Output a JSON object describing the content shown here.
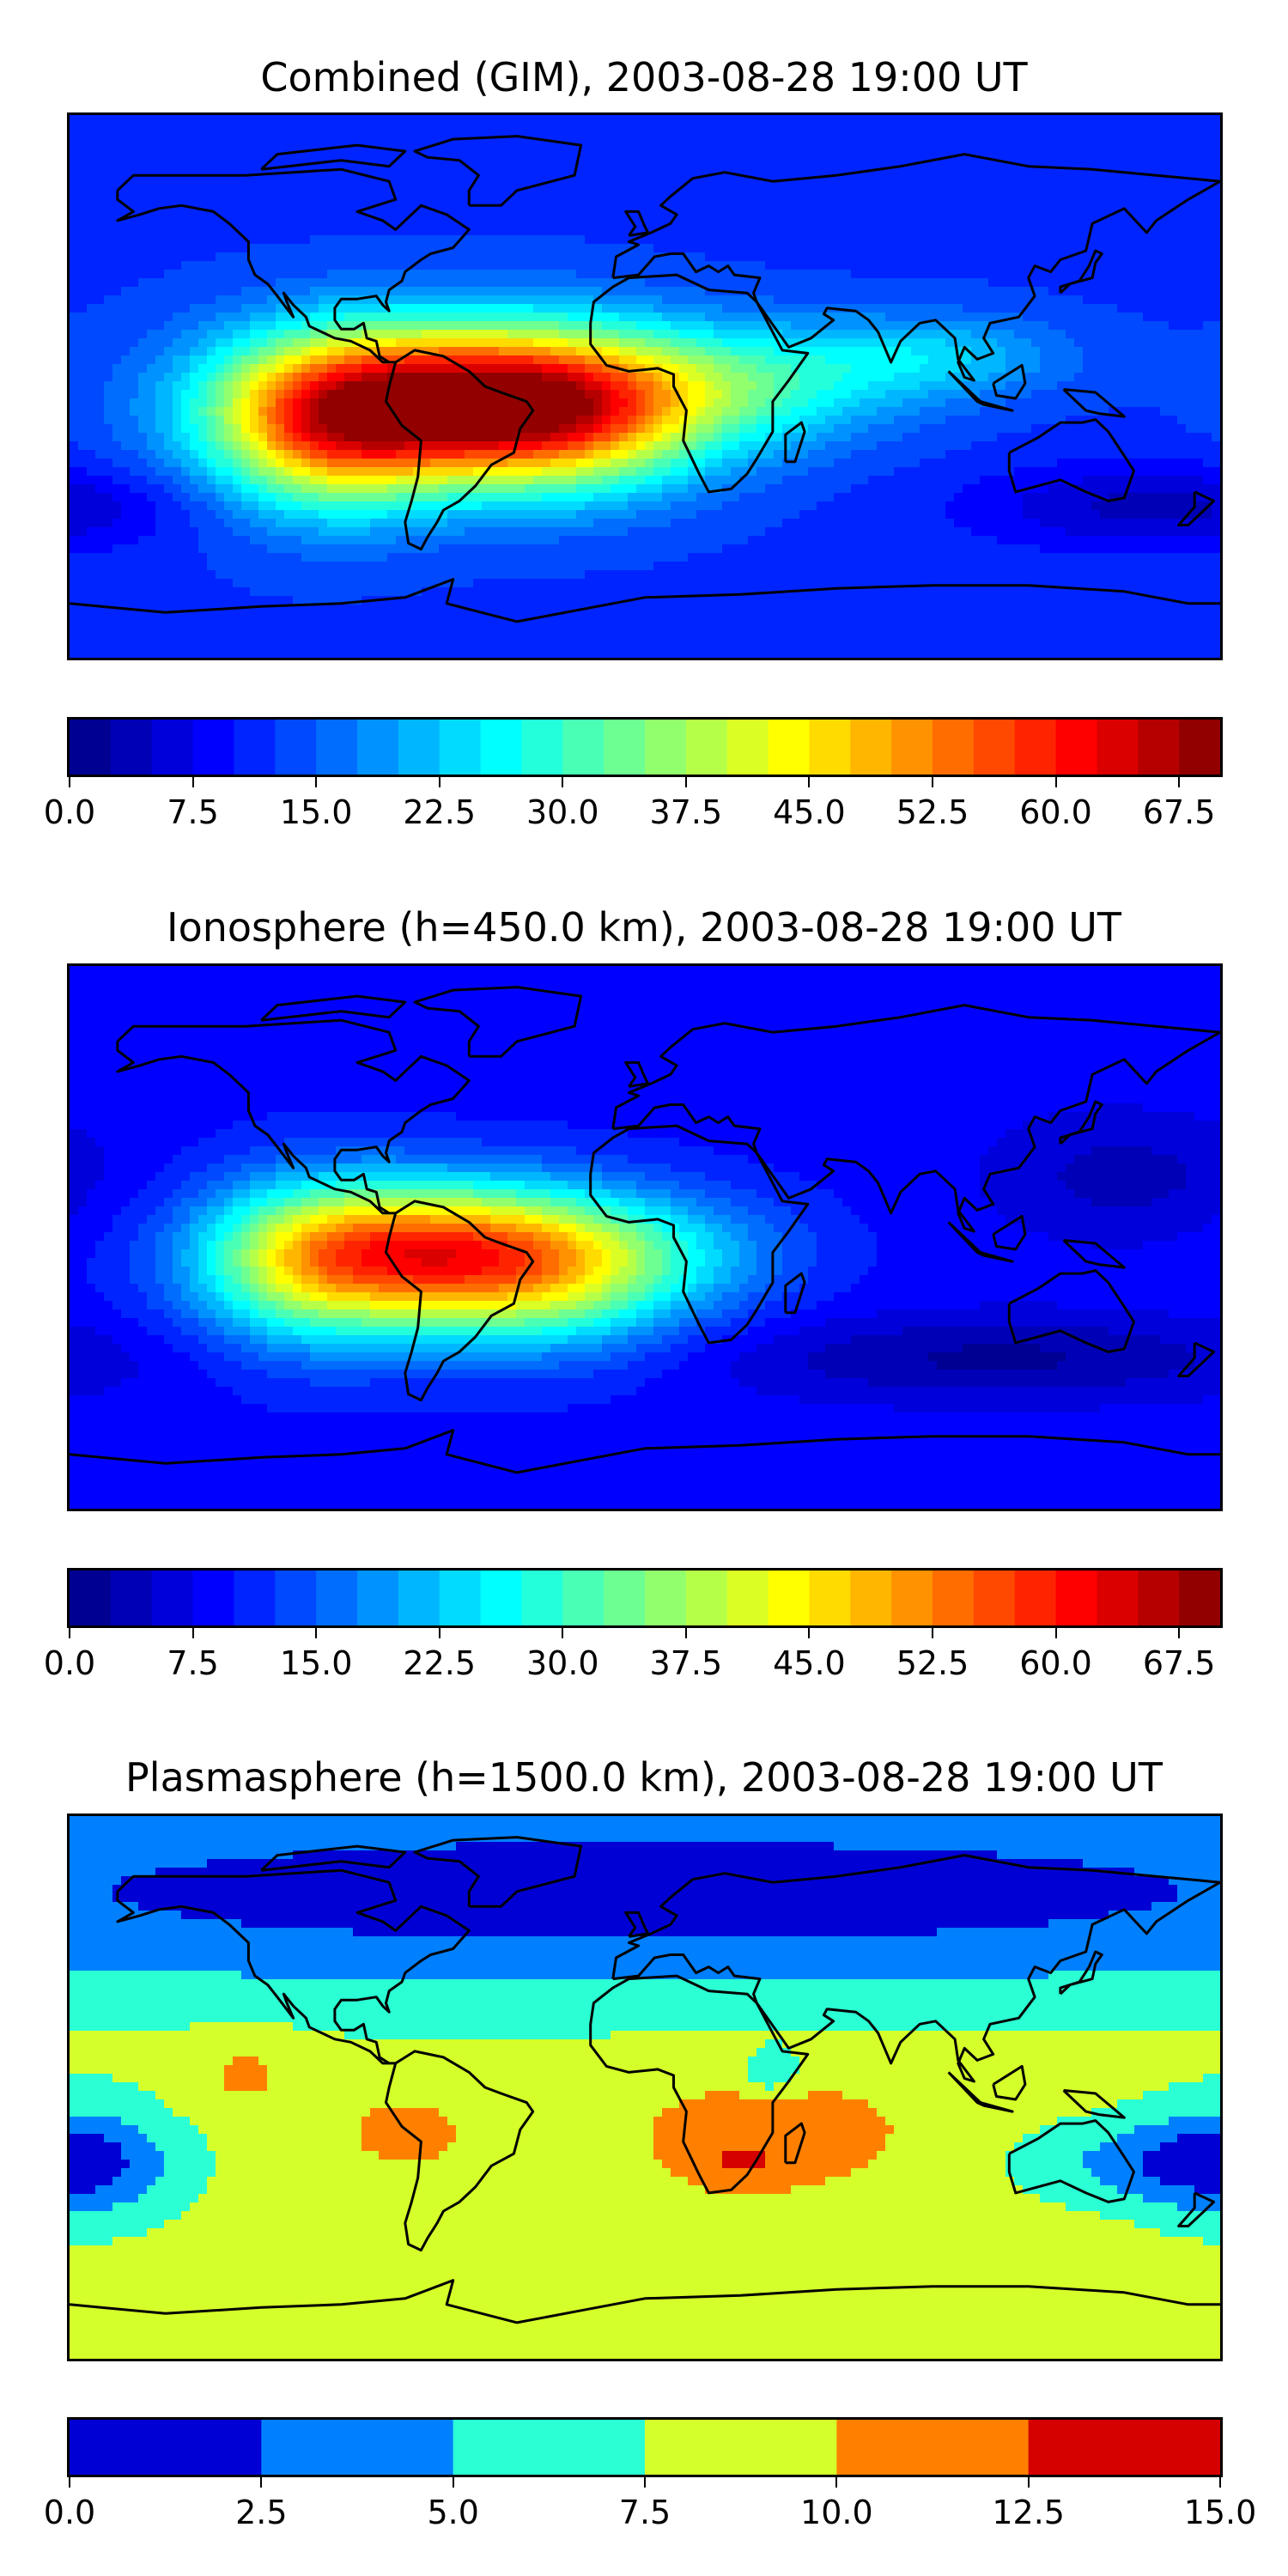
{
  "panels": [
    {
      "title": "Combined (GIM), 2003-08-28 19:00 UT",
      "colorbar": {
        "min": 0.0,
        "max": 70.0,
        "step": 2.5,
        "colormap": "jet",
        "ticks": [
          "0.0",
          "7.5",
          "15.0",
          "22.5",
          "30.0",
          "37.5",
          "45.0",
          "52.5",
          "60.0",
          "67.5"
        ]
      },
      "field": {
        "base": 12,
        "blobs": [
          {
            "lon": -60,
            "lat": -5,
            "amp": 50,
            "rx": 45,
            "ry": 18
          },
          {
            "lon": -25,
            "lat": -10,
            "amp": 20,
            "rx": 30,
            "ry": 18
          },
          {
            "lon": -100,
            "lat": -15,
            "amp": 25,
            "rx": 25,
            "ry": 20
          },
          {
            "lon": 30,
            "lat": 0,
            "amp": 14,
            "rx": 35,
            "ry": 14
          },
          {
            "lon": 90,
            "lat": 10,
            "amp": 10,
            "rx": 30,
            "ry": 10
          },
          {
            "lon": 160,
            "lat": -40,
            "amp": -8,
            "rx": 40,
            "ry": 10
          }
        ]
      }
    },
    {
      "title": "Ionosphere  (h=450.0 km), 2003-08-28 19:00 UT",
      "colorbar": {
        "min": 0.0,
        "max": 70.0,
        "step": 2.5,
        "colormap": "jet",
        "ticks": [
          "0.0",
          "7.5",
          "15.0",
          "22.5",
          "30.0",
          "37.5",
          "45.0",
          "52.5",
          "60.0",
          "67.5"
        ]
      },
      "field": {
        "base": 9,
        "blobs": [
          {
            "lon": -65,
            "lat": -5,
            "amp": 42,
            "rx": 40,
            "ry": 16
          },
          {
            "lon": -30,
            "lat": -15,
            "amp": 15,
            "rx": 30,
            "ry": 18
          },
          {
            "lon": -105,
            "lat": -10,
            "amp": 18,
            "rx": 25,
            "ry": 20
          },
          {
            "lon": 10,
            "lat": -5,
            "amp": 8,
            "rx": 30,
            "ry": 14
          },
          {
            "lon": 110,
            "lat": -40,
            "amp": -7,
            "rx": 60,
            "ry": 10
          },
          {
            "lon": 150,
            "lat": 20,
            "amp": -5,
            "rx": 30,
            "ry": 15
          }
        ]
      }
    },
    {
      "title": "Plasmasphere (h=1500.0 km), 2003-08-28 19:00 UT",
      "colorbar": {
        "min": 0.0,
        "max": 15.0,
        "step": 2.5,
        "colormap": "jet",
        "ticks": [
          "0.0",
          "2.5",
          "5.0",
          "7.5",
          "10.0",
          "12.5",
          "15.0"
        ]
      },
      "field": {
        "base": 8.6,
        "blobs": [
          {
            "lon": 0,
            "lat": 65,
            "amp": -7.5,
            "rx": 260,
            "ry": 25
          },
          {
            "lon": -30,
            "lat": -60,
            "amp": 1.2,
            "rx": 40,
            "ry": 8
          },
          {
            "lon": 40,
            "lat": -15,
            "amp": 2.6,
            "rx": 35,
            "ry": 16
          },
          {
            "lon": 30,
            "lat": -25,
            "amp": 2.5,
            "rx": 10,
            "ry": 5
          },
          {
            "lon": -75,
            "lat": -15,
            "amp": 2.3,
            "rx": 15,
            "ry": 10
          },
          {
            "lon": -125,
            "lat": 5,
            "amp": 2.2,
            "rx": 12,
            "ry": 10
          },
          {
            "lon": -175,
            "lat": -25,
            "amp": -5,
            "rx": 20,
            "ry": 15
          },
          {
            "lon": 160,
            "lat": -25,
            "amp": -4.5,
            "rx": 30,
            "ry": 10
          },
          {
            "lon": 40,
            "lat": 5,
            "amp": -4,
            "rx": 6,
            "ry": 5
          }
        ]
      }
    }
  ]
}
